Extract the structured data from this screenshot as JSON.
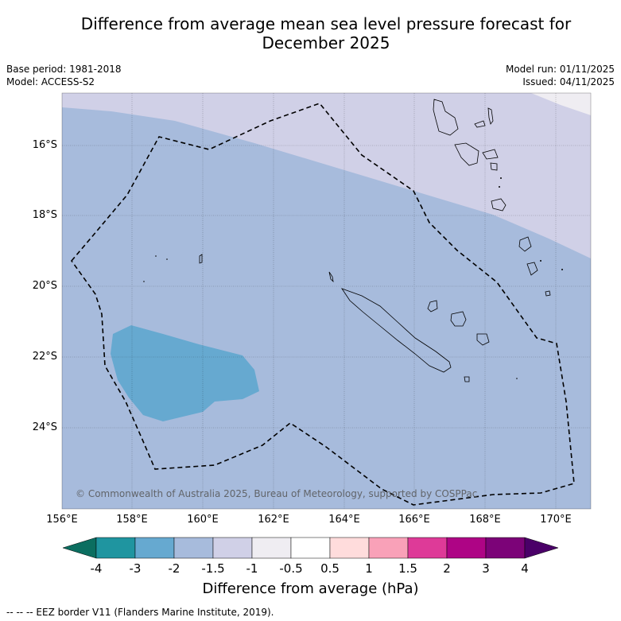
{
  "title": "Difference from average mean sea level pressure forecast for December 2025",
  "meta": {
    "base_period": "Base period: 1981-2018",
    "model": "Model: ACCESS-S2",
    "model_run": "Model run: 01/11/2025",
    "issued": "Issued: 04/11/2025"
  },
  "map": {
    "lat_labels": [
      "16°S",
      "18°S",
      "20°S",
      "22°S",
      "24°S"
    ],
    "lon_labels": [
      "156°E",
      "158°E",
      "160°E",
      "162°E",
      "164°E",
      "166°E",
      "168°E",
      "170°E"
    ],
    "copyright": "© Commonwealth of Australia 2025, Bureau of Meteorology, supported by COSPPac"
  },
  "colorbar": {
    "title": "Difference from average (hPa)",
    "labels": [
      "-4",
      "-3",
      "-2",
      "-1.5",
      "-1",
      "-0.5",
      "0.5",
      "1",
      "1.5",
      "2",
      "3",
      "4"
    ],
    "colors": {
      "under": "#0b6e60",
      "bins": [
        "#1f95a0",
        "#66a9d0",
        "#a7bbdc",
        "#d0d0e7",
        "#efedf2",
        "#ffffff",
        "#ffdcdc",
        "#f9a1b8",
        "#de3a98",
        "#ae0485",
        "#7c0378"
      ],
      "over": "#4a0068"
    }
  },
  "legend": {
    "eez_label": "--  --  -- EEZ border V11 (Flanders Marine Institute, 2019)."
  }
}
